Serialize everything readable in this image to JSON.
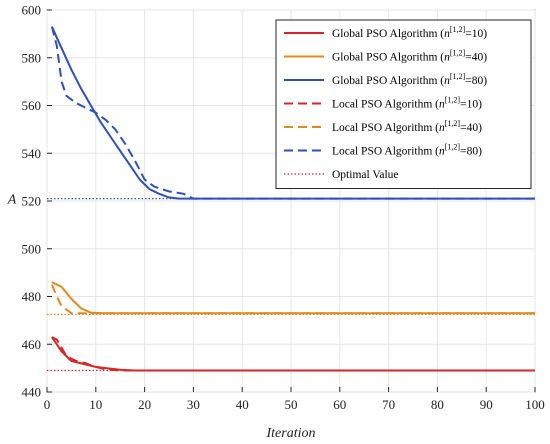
{
  "chart_data": {
    "type": "line",
    "xlabel": "Iteration",
    "ylabel": "A",
    "xlim": [
      0,
      100
    ],
    "ylim": [
      440,
      600
    ],
    "xticks": [
      0,
      10,
      20,
      30,
      40,
      50,
      60,
      70,
      80,
      90,
      100
    ],
    "yticks": [
      440,
      460,
      480,
      500,
      520,
      540,
      560,
      580,
      600
    ],
    "grid": true,
    "legend_position": "top-right",
    "series": [
      {
        "name": "Global PSO Algorithm (n[1,2]=10)",
        "legend_parts": [
          "Global PSO Algorithm (",
          "n",
          "[1,2]",
          "=10)"
        ],
        "color": "#d62728",
        "style": "solid",
        "x": [
          1,
          3,
          5,
          8,
          10,
          12,
          15,
          18,
          20,
          25,
          30,
          100
        ],
        "y": [
          463,
          457,
          453,
          451.5,
          450.5,
          450,
          449.3,
          449,
          449,
          449,
          449,
          449
        ]
      },
      {
        "name": "Global PSO Algorithm (n[1,2]=40)",
        "legend_parts": [
          "Global PSO Algorithm (",
          "n",
          "[1,2]",
          "=40)"
        ],
        "color": "#e08a1e",
        "style": "solid",
        "x": [
          1,
          3,
          5,
          7,
          9,
          12,
          15,
          20,
          100
        ],
        "y": [
          486,
          484,
          479,
          475,
          473.2,
          473,
          473,
          473,
          473
        ]
      },
      {
        "name": "Global PSO Algorithm (n[1,2]=80)",
        "legend_parts": [
          "Global PSO Algorithm (",
          "n",
          "[1,2]",
          "=80)"
        ],
        "color": "#3050b8",
        "style": "solid",
        "x": [
          1,
          3,
          5,
          7,
          9,
          11,
          13,
          15,
          17,
          19,
          21,
          23,
          25,
          27,
          30,
          100
        ],
        "y": [
          593,
          584,
          575,
          567,
          560,
          553,
          547,
          541,
          535,
          529,
          525,
          523,
          521.5,
          521,
          521,
          521
        ]
      },
      {
        "name": "Local PSO Algorithm (n[1,2]=10)",
        "legend_parts": [
          "Local PSO Algorithm (",
          "n",
          "[1,2]",
          "=10)"
        ],
        "color": "#d62728",
        "style": "dashed",
        "x": [
          1,
          2,
          4,
          6,
          8,
          10,
          12,
          15,
          20,
          100
        ],
        "y": [
          463,
          462,
          455,
          453,
          452,
          450.5,
          449.5,
          449,
          449,
          449
        ]
      },
      {
        "name": "Local PSO Algorithm (n[1,2]=40)",
        "legend_parts": [
          "Local PSO Algorithm (",
          "n",
          "[1,2]",
          "=40)"
        ],
        "color": "#e08a1e",
        "style": "dashed",
        "x": [
          1,
          2,
          3,
          5,
          8,
          10,
          15,
          100
        ],
        "y": [
          485,
          480,
          476,
          473,
          473,
          473,
          473,
          473
        ]
      },
      {
        "name": "Local PSO Algorithm (n[1,2]=80)",
        "legend_parts": [
          "Local PSO Algorithm (",
          "n",
          "[1,2]",
          "=80)"
        ],
        "color": "#3050b8",
        "style": "dashed",
        "x": [
          1,
          2,
          3,
          4,
          6,
          8,
          10,
          12,
          14,
          16,
          18,
          20,
          22,
          25,
          28,
          30,
          100
        ],
        "y": [
          593,
          585,
          570,
          564,
          561,
          559,
          557,
          554,
          550,
          544,
          537,
          529,
          526,
          524,
          523,
          521,
          521
        ]
      },
      {
        "name": "Optimal Value",
        "legend_parts": [
          "Optimal Value"
        ],
        "color": "#d62728",
        "style": "dotted",
        "x": [
          0,
          100
        ],
        "y": [
          449,
          449
        ]
      }
    ],
    "reference_lines": [
      {
        "color": "#d62728",
        "style": "dotted",
        "y": 449
      },
      {
        "color": "#e08a1e",
        "style": "dotted",
        "y": 472.5
      },
      {
        "color": "#3050b8",
        "style": "dotted",
        "y": 521
      }
    ]
  }
}
